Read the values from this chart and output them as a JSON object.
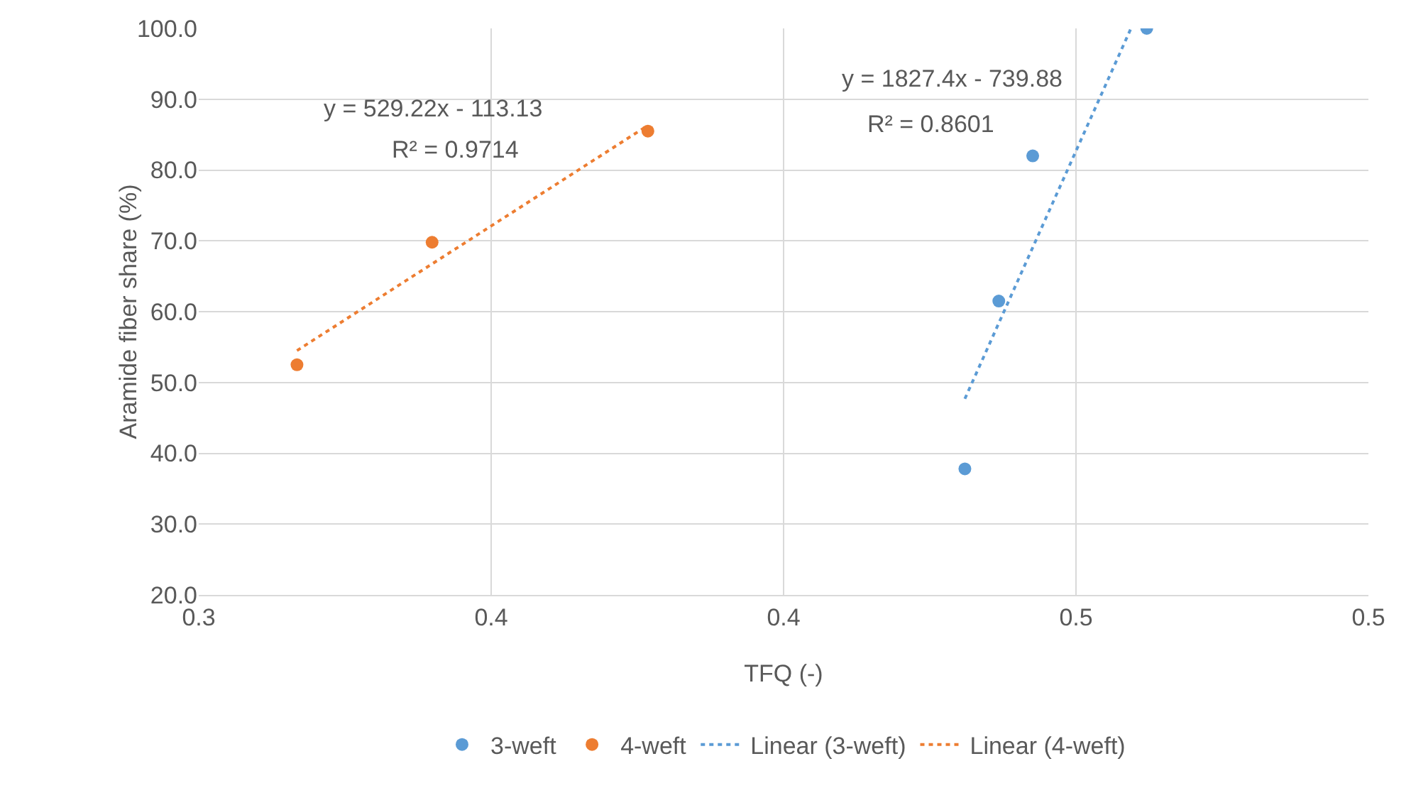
{
  "chart_data": {
    "type": "scatter",
    "xlabel": "TFQ (-)",
    "ylabel": "Aramide fiber share (%)",
    "series": [
      {
        "name": "3-weft",
        "color": "#5b9bd5",
        "marker": "circle",
        "x": [
          0.431,
          0.4368,
          0.4426,
          0.4621
        ],
        "values": [
          37.8,
          61.5,
          82.0,
          100.0
        ]
      },
      {
        "name": "4-weft",
        "color": "#ed7d31",
        "marker": "circle",
        "x": [
          0.3168,
          0.3399,
          0.3768
        ],
        "values": [
          52.5,
          69.8,
          85.5
        ]
      },
      {
        "name": "Linear (3-weft)",
        "type": "line",
        "color": "#5b9bd5",
        "marker": "none",
        "line_style": "dotted",
        "x": [
          0.431,
          0.4594
        ],
        "values": [
          47.7,
          100.0
        ]
      },
      {
        "name": "Linear (4-weft)",
        "type": "line",
        "color": "#ed7d31",
        "marker": "none",
        "line_style": "dotted",
        "x": [
          0.3168,
          0.3768
        ],
        "values": [
          54.5,
          86.3
        ]
      }
    ],
    "xlim": [
      0.3,
      0.5
    ],
    "xticks": [
      {
        "value": 0.3,
        "label": "0.3"
      },
      {
        "value": 0.35,
        "label": "0.4"
      },
      {
        "value": 0.4,
        "label": "0.4"
      },
      {
        "value": 0.45,
        "label": "0.5"
      },
      {
        "value": 0.5,
        "label": "0.5"
      }
    ],
    "ylim": [
      20,
      100
    ],
    "yticks": [
      {
        "value": 20,
        "label": "20.0"
      },
      {
        "value": 30,
        "label": "30.0"
      },
      {
        "value": 40,
        "label": "40.0"
      },
      {
        "value": 50,
        "label": "50.0"
      },
      {
        "value": 60,
        "label": "60.0"
      },
      {
        "value": 70,
        "label": "70.0"
      },
      {
        "value": 80,
        "label": "80.0"
      },
      {
        "value": 90,
        "label": "90.0"
      },
      {
        "value": 100,
        "label": "100.0"
      }
    ],
    "grid": true,
    "legend": "bottom",
    "annotations": [
      "y = 529.22x - 113.13",
      "R² = 0.9714",
      "y = 1827.4x - 739.88",
      "R² = 0.8601"
    ]
  }
}
